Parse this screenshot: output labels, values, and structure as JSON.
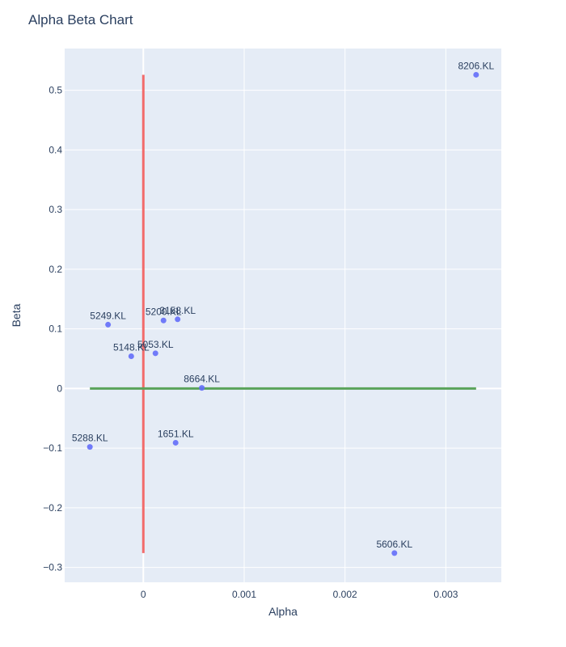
{
  "chart_data": {
    "type": "scatter",
    "title": "Alpha Beta Chart",
    "xlabel": "Alpha",
    "ylabel": "Beta",
    "xlim": [
      -0.00078,
      0.00355
    ],
    "ylim": [
      -0.325,
      0.57
    ],
    "x_ticks": [
      {
        "value": 0,
        "label": "0"
      },
      {
        "value": 0.001,
        "label": "0.001"
      },
      {
        "value": 0.002,
        "label": "0.002"
      },
      {
        "value": 0.003,
        "label": "0.003"
      }
    ],
    "y_ticks": [
      {
        "value": -0.3,
        "label": "−0.3"
      },
      {
        "value": -0.2,
        "label": "−0.2"
      },
      {
        "value": -0.1,
        "label": "−0.1"
      },
      {
        "value": 0,
        "label": "0"
      },
      {
        "value": 0.1,
        "label": "0.1"
      },
      {
        "value": 0.2,
        "label": "0.2"
      },
      {
        "value": 0.3,
        "label": "0.3"
      },
      {
        "value": 0.4,
        "label": "0.4"
      },
      {
        "value": 0.5,
        "label": "0.5"
      }
    ],
    "grid": true,
    "points": [
      {
        "label": "8206.KL",
        "x": 0.0033,
        "y": 0.526
      },
      {
        "label": "5249.KL",
        "x": -0.00035,
        "y": 0.107
      },
      {
        "label": "5200.KL",
        "x": 0.0002,
        "y": 0.114
      },
      {
        "label": "3158.KL",
        "x": 0.00034,
        "y": 0.116
      },
      {
        "label": "5148.KL",
        "x": -0.00012,
        "y": 0.054
      },
      {
        "label": "5053.KL",
        "x": 0.00012,
        "y": 0.059
      },
      {
        "label": "8664.KL",
        "x": 0.00058,
        "y": 0.001
      },
      {
        "label": "1651.KL",
        "x": 0.00032,
        "y": -0.091
      },
      {
        "label": "5288.KL",
        "x": -0.00053,
        "y": -0.098
      },
      {
        "label": "5606.KL",
        "x": 0.00249,
        "y": -0.276
      }
    ],
    "reference_lines": [
      {
        "name": "alpha-zero-line",
        "x": [
          0,
          0
        ],
        "y": [
          -0.276,
          0.526
        ],
        "color": "#f26b6b"
      },
      {
        "name": "beta-zero-line",
        "x": [
          -0.00053,
          0.0033
        ],
        "y": [
          0,
          0
        ],
        "color": "#5aa35a"
      }
    ],
    "marker_color": "#636efa"
  }
}
